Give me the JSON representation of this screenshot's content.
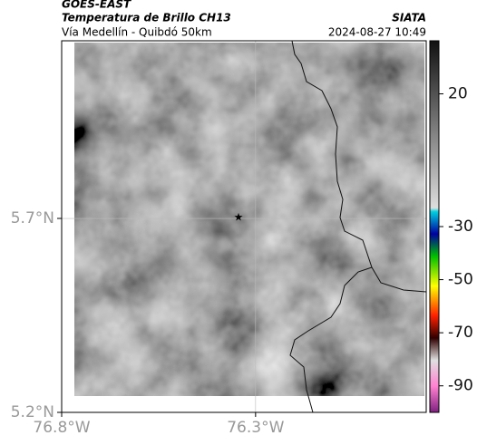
{
  "header": {
    "source": "GOES-EAST",
    "product": "Temperatura de Brillo CH13",
    "region": "Vía Medellín - Quibdó 50km",
    "org": "SIATA",
    "timestamp": "2024-08-27 10:49"
  },
  "map": {
    "xlim": [
      -76.8,
      -75.86
    ],
    "ylim": [
      5.2,
      6.158
    ],
    "xticks": [
      {
        "value": -76.8,
        "label": "76.8°W"
      },
      {
        "value": -76.3,
        "label": "76.3°W"
      }
    ],
    "yticks": [
      {
        "value": 5.2,
        "label": "5.2°N"
      },
      {
        "value": 5.7,
        "label": "5.7°N"
      }
    ],
    "grid": true
  },
  "colorbar": {
    "lim": [
      40,
      -100
    ],
    "ticks": [
      20,
      -30,
      -50,
      -70,
      -90
    ]
  }
}
